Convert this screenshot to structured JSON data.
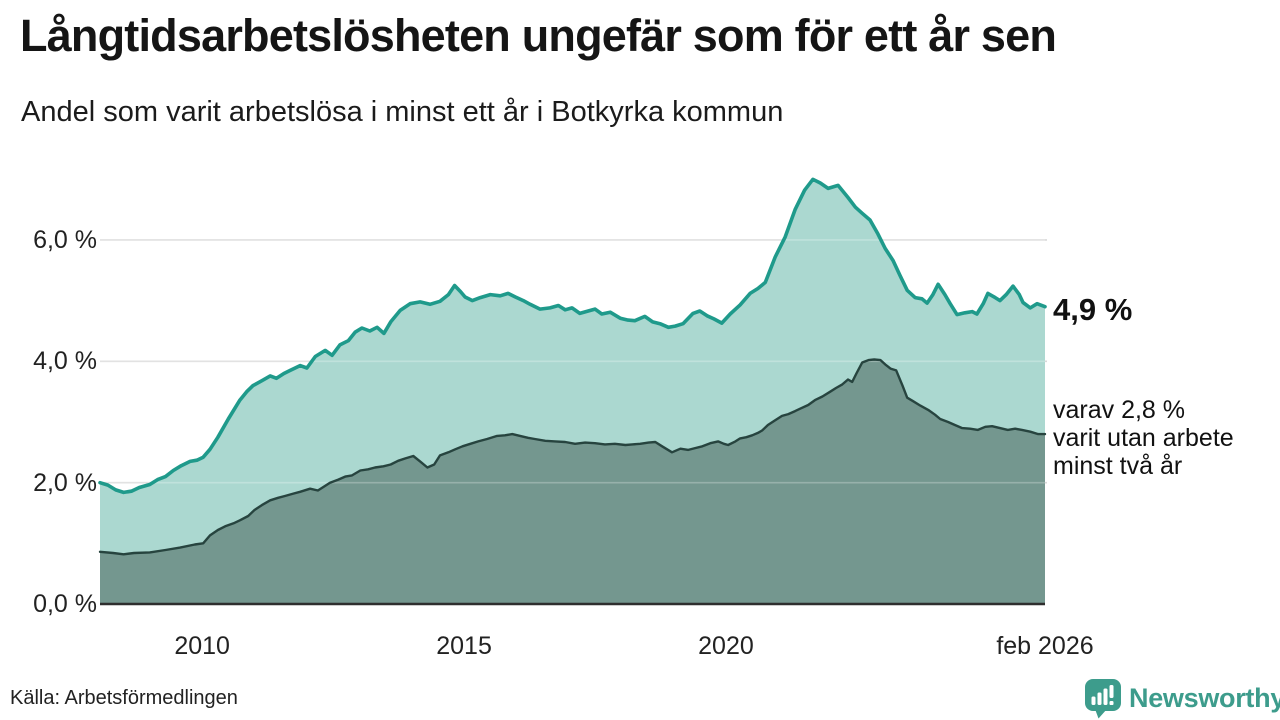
{
  "title": "Långtidsarbetslösheten ungefär som för ett år sen",
  "subtitle": "Andel som varit arbetslösa i minst ett år i Botkyrka kommun",
  "source": "Källa: Arbetsförmedlingen",
  "branding": {
    "name": "Newsworthy",
    "icon": "newsworthy-pin-barchart-icon",
    "color": "#3d9c8c"
  },
  "annotations": {
    "end_label_primary": "4,9 %",
    "end_label_secondary_lines": [
      "varav 2,8 %",
      "varit utan arbete",
      "minst två år"
    ]
  },
  "colors": {
    "one_year_line": "#1f9a8b",
    "one_year_fill": "#abd8d0",
    "two_year_line": "#27443f",
    "two_year_fill": "#74978f",
    "gridline": "#d9d9d9",
    "axis": "#2e2e2e",
    "text": "#222222"
  },
  "chart_data": {
    "type": "area",
    "title": "Långtidsarbetslösheten ungefär som för ett år sen",
    "subtitle": "Andel som varit arbetslösa i minst ett år i Botkyrka kommun",
    "x_axis": {
      "range": [
        2008.05,
        2026.09
      ],
      "ticks": [
        {
          "year": 2010,
          "label": "2010"
        },
        {
          "year": 2015,
          "label": "2015"
        },
        {
          "year": 2020,
          "label": "2020"
        },
        {
          "year": 2026.09,
          "label": "feb 2026"
        }
      ]
    },
    "y_axis": {
      "range": [
        0,
        7.3
      ],
      "unit": "%",
      "ticks": [
        {
          "value": 0,
          "label": "0,0 %"
        },
        {
          "value": 2,
          "label": "2,0 %"
        },
        {
          "value": 4,
          "label": "4,0 %"
        },
        {
          "value": 6,
          "label": "6,0 %"
        }
      ]
    },
    "legend_position": "none",
    "grid": true,
    "series": [
      {
        "name": "Arbetslösa minst ett år",
        "end_value": 4.9,
        "end_value_label": "4,9 %",
        "points": [
          [
            2008.05,
            2.0
          ],
          [
            2008.2,
            1.96
          ],
          [
            2008.35,
            1.88
          ],
          [
            2008.5,
            1.84
          ],
          [
            2008.65,
            1.86
          ],
          [
            2008.8,
            1.92
          ],
          [
            2009.0,
            1.97
          ],
          [
            2009.15,
            2.05
          ],
          [
            2009.3,
            2.1
          ],
          [
            2009.45,
            2.2
          ],
          [
            2009.6,
            2.28
          ],
          [
            2009.77,
            2.35
          ],
          [
            2009.9,
            2.37
          ],
          [
            2010.02,
            2.42
          ],
          [
            2010.15,
            2.55
          ],
          [
            2010.3,
            2.75
          ],
          [
            2010.5,
            3.05
          ],
          [
            2010.72,
            3.36
          ],
          [
            2010.85,
            3.5
          ],
          [
            2010.97,
            3.6
          ],
          [
            2011.14,
            3.68
          ],
          [
            2011.3,
            3.76
          ],
          [
            2011.42,
            3.72
          ],
          [
            2011.56,
            3.8
          ],
          [
            2011.68,
            3.85
          ],
          [
            2011.87,
            3.93
          ],
          [
            2012.0,
            3.89
          ],
          [
            2012.16,
            4.08
          ],
          [
            2012.35,
            4.18
          ],
          [
            2012.48,
            4.1
          ],
          [
            2012.63,
            4.27
          ],
          [
            2012.79,
            4.34
          ],
          [
            2012.92,
            4.48
          ],
          [
            2013.05,
            4.55
          ],
          [
            2013.2,
            4.5
          ],
          [
            2013.34,
            4.56
          ],
          [
            2013.47,
            4.46
          ],
          [
            2013.6,
            4.65
          ],
          [
            2013.78,
            4.84
          ],
          [
            2013.97,
            4.95
          ],
          [
            2014.16,
            4.98
          ],
          [
            2014.35,
            4.94
          ],
          [
            2014.54,
            4.99
          ],
          [
            2014.7,
            5.1
          ],
          [
            2014.82,
            5.25
          ],
          [
            2014.93,
            5.15
          ],
          [
            2015.02,
            5.06
          ],
          [
            2015.16,
            5.0
          ],
          [
            2015.31,
            5.05
          ],
          [
            2015.5,
            5.1
          ],
          [
            2015.69,
            5.08
          ],
          [
            2015.84,
            5.12
          ],
          [
            2015.98,
            5.06
          ],
          [
            2016.13,
            5.0
          ],
          [
            2016.26,
            4.94
          ],
          [
            2016.45,
            4.86
          ],
          [
            2016.64,
            4.88
          ],
          [
            2016.8,
            4.92
          ],
          [
            2016.93,
            4.85
          ],
          [
            2017.06,
            4.88
          ],
          [
            2017.21,
            4.79
          ],
          [
            2017.37,
            4.83
          ],
          [
            2017.5,
            4.86
          ],
          [
            2017.63,
            4.78
          ],
          [
            2017.79,
            4.81
          ],
          [
            2017.98,
            4.71
          ],
          [
            2018.13,
            4.68
          ],
          [
            2018.26,
            4.67
          ],
          [
            2018.45,
            4.74
          ],
          [
            2018.6,
            4.65
          ],
          [
            2018.74,
            4.62
          ],
          [
            2018.9,
            4.56
          ],
          [
            2019.03,
            4.58
          ],
          [
            2019.18,
            4.62
          ],
          [
            2019.37,
            4.79
          ],
          [
            2019.5,
            4.83
          ],
          [
            2019.64,
            4.75
          ],
          [
            2019.77,
            4.7
          ],
          [
            2019.92,
            4.63
          ],
          [
            2020.08,
            4.78
          ],
          [
            2020.27,
            4.93
          ],
          [
            2020.46,
            5.12
          ],
          [
            2020.61,
            5.2
          ],
          [
            2020.75,
            5.3
          ],
          [
            2020.94,
            5.72
          ],
          [
            2021.13,
            6.05
          ],
          [
            2021.32,
            6.5
          ],
          [
            2021.5,
            6.82
          ],
          [
            2021.66,
            7.0
          ],
          [
            2021.8,
            6.94
          ],
          [
            2021.95,
            6.85
          ],
          [
            2022.14,
            6.9
          ],
          [
            2022.33,
            6.7
          ],
          [
            2022.47,
            6.54
          ],
          [
            2022.6,
            6.44
          ],
          [
            2022.75,
            6.33
          ],
          [
            2022.9,
            6.1
          ],
          [
            2023.04,
            5.86
          ],
          [
            2023.19,
            5.66
          ],
          [
            2023.32,
            5.42
          ],
          [
            2023.46,
            5.17
          ],
          [
            2023.61,
            5.05
          ],
          [
            2023.74,
            5.03
          ],
          [
            2023.84,
            4.96
          ],
          [
            2023.95,
            5.1
          ],
          [
            2024.05,
            5.27
          ],
          [
            2024.18,
            5.1
          ],
          [
            2024.28,
            4.95
          ],
          [
            2024.41,
            4.77
          ],
          [
            2024.56,
            4.8
          ],
          [
            2024.7,
            4.82
          ],
          [
            2024.79,
            4.78
          ],
          [
            2024.91,
            4.95
          ],
          [
            2025.0,
            5.12
          ],
          [
            2025.14,
            5.05
          ],
          [
            2025.23,
            5.0
          ],
          [
            2025.35,
            5.1
          ],
          [
            2025.48,
            5.24
          ],
          [
            2025.6,
            5.1
          ],
          [
            2025.67,
            4.97
          ],
          [
            2025.81,
            4.88
          ],
          [
            2025.94,
            4.95
          ],
          [
            2026.09,
            4.9
          ]
        ]
      },
      {
        "name": "varav utan arbete minst två år",
        "end_value": 2.8,
        "end_value_label": "2,8 %",
        "points": [
          [
            2008.05,
            0.86
          ],
          [
            2008.3,
            0.84
          ],
          [
            2008.5,
            0.82
          ],
          [
            2008.7,
            0.84
          ],
          [
            2009.0,
            0.85
          ],
          [
            2009.3,
            0.89
          ],
          [
            2009.58,
            0.93
          ],
          [
            2009.86,
            0.98
          ],
          [
            2010.02,
            1.0
          ],
          [
            2010.15,
            1.13
          ],
          [
            2010.3,
            1.22
          ],
          [
            2010.44,
            1.28
          ],
          [
            2010.6,
            1.33
          ],
          [
            2010.72,
            1.38
          ],
          [
            2010.88,
            1.45
          ],
          [
            2011.0,
            1.55
          ],
          [
            2011.14,
            1.63
          ],
          [
            2011.3,
            1.71
          ],
          [
            2011.45,
            1.75
          ],
          [
            2011.58,
            1.78
          ],
          [
            2011.74,
            1.82
          ],
          [
            2011.87,
            1.85
          ],
          [
            2012.06,
            1.9
          ],
          [
            2012.21,
            1.87
          ],
          [
            2012.44,
            2.0
          ],
          [
            2012.6,
            2.05
          ],
          [
            2012.73,
            2.1
          ],
          [
            2012.86,
            2.12
          ],
          [
            2013.02,
            2.2
          ],
          [
            2013.17,
            2.22
          ],
          [
            2013.3,
            2.25
          ],
          [
            2013.46,
            2.27
          ],
          [
            2013.6,
            2.3
          ],
          [
            2013.74,
            2.36
          ],
          [
            2013.88,
            2.4
          ],
          [
            2014.03,
            2.44
          ],
          [
            2014.16,
            2.35
          ],
          [
            2014.3,
            2.25
          ],
          [
            2014.43,
            2.3
          ],
          [
            2014.54,
            2.45
          ],
          [
            2014.7,
            2.5
          ],
          [
            2014.83,
            2.55
          ],
          [
            2014.97,
            2.6
          ],
          [
            2015.12,
            2.64
          ],
          [
            2015.27,
            2.68
          ],
          [
            2015.44,
            2.72
          ],
          [
            2015.63,
            2.77
          ],
          [
            2015.78,
            2.78
          ],
          [
            2015.92,
            2.8
          ],
          [
            2016.07,
            2.77
          ],
          [
            2016.22,
            2.74
          ],
          [
            2016.35,
            2.72
          ],
          [
            2016.55,
            2.69
          ],
          [
            2016.74,
            2.68
          ],
          [
            2016.93,
            2.67
          ],
          [
            2017.12,
            2.64
          ],
          [
            2017.31,
            2.66
          ],
          [
            2017.5,
            2.65
          ],
          [
            2017.69,
            2.63
          ],
          [
            2017.88,
            2.64
          ],
          [
            2018.08,
            2.62
          ],
          [
            2018.21,
            2.63
          ],
          [
            2018.36,
            2.64
          ],
          [
            2018.52,
            2.66
          ],
          [
            2018.65,
            2.67
          ],
          [
            2018.78,
            2.6
          ],
          [
            2018.97,
            2.5
          ],
          [
            2019.13,
            2.56
          ],
          [
            2019.28,
            2.54
          ],
          [
            2019.41,
            2.57
          ],
          [
            2019.55,
            2.6
          ],
          [
            2019.7,
            2.65
          ],
          [
            2019.85,
            2.68
          ],
          [
            2019.96,
            2.64
          ],
          [
            2020.04,
            2.62
          ],
          [
            2020.18,
            2.68
          ],
          [
            2020.27,
            2.73
          ],
          [
            2020.39,
            2.75
          ],
          [
            2020.5,
            2.78
          ],
          [
            2020.61,
            2.82
          ],
          [
            2020.69,
            2.86
          ],
          [
            2020.8,
            2.95
          ],
          [
            2020.94,
            3.03
          ],
          [
            2021.07,
            3.1
          ],
          [
            2021.19,
            3.13
          ],
          [
            2021.32,
            3.18
          ],
          [
            2021.42,
            3.22
          ],
          [
            2021.57,
            3.28
          ],
          [
            2021.7,
            3.36
          ],
          [
            2021.84,
            3.42
          ],
          [
            2021.99,
            3.5
          ],
          [
            2022.1,
            3.56
          ],
          [
            2022.22,
            3.62
          ],
          [
            2022.33,
            3.7
          ],
          [
            2022.41,
            3.66
          ],
          [
            2022.49,
            3.8
          ],
          [
            2022.6,
            3.98
          ],
          [
            2022.72,
            4.02
          ],
          [
            2022.83,
            4.03
          ],
          [
            2022.95,
            4.02
          ],
          [
            2023.04,
            3.95
          ],
          [
            2023.14,
            3.88
          ],
          [
            2023.25,
            3.85
          ],
          [
            2023.37,
            3.6
          ],
          [
            2023.46,
            3.4
          ],
          [
            2023.56,
            3.35
          ],
          [
            2023.71,
            3.27
          ],
          [
            2023.86,
            3.2
          ],
          [
            2023.99,
            3.12
          ],
          [
            2024.09,
            3.05
          ],
          [
            2024.24,
            3.0
          ],
          [
            2024.37,
            2.95
          ],
          [
            2024.51,
            2.9
          ],
          [
            2024.66,
            2.89
          ],
          [
            2024.81,
            2.87
          ],
          [
            2024.95,
            2.92
          ],
          [
            2025.08,
            2.93
          ],
          [
            2025.23,
            2.9
          ],
          [
            2025.38,
            2.87
          ],
          [
            2025.52,
            2.89
          ],
          [
            2025.65,
            2.87
          ],
          [
            2025.81,
            2.84
          ],
          [
            2025.96,
            2.8
          ],
          [
            2026.09,
            2.8
          ]
        ]
      }
    ]
  }
}
